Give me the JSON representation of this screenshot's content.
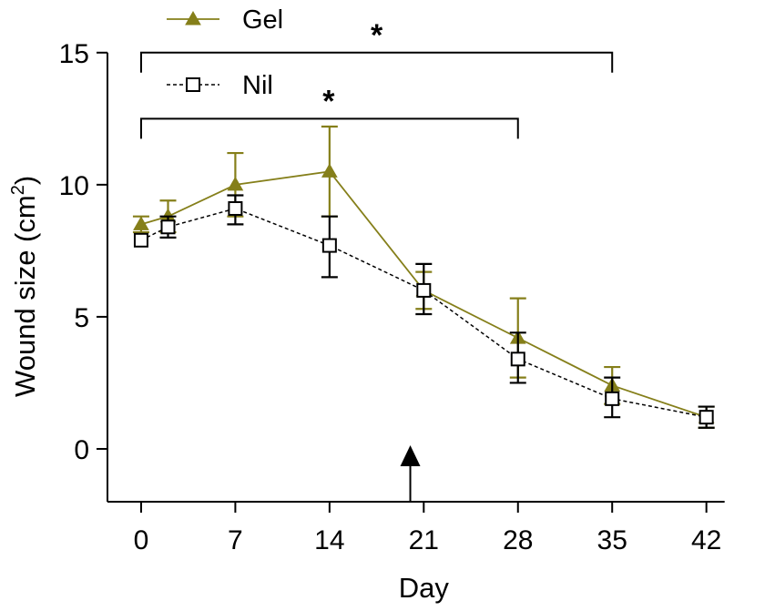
{
  "chart_data": {
    "type": "line",
    "title": "",
    "xlabel": "Day",
    "ylabel": "Wound size (cm",
    "ylabel_sup": "2",
    "ylabel_end": ")",
    "xlim": [
      -2.5,
      45
    ],
    "ylim": [
      -2,
      15.2
    ],
    "xticks": [
      0,
      7,
      14,
      21,
      28,
      35,
      42
    ],
    "yticks": [
      0,
      5,
      10,
      15
    ],
    "colors": {
      "gel": "#857f1a",
      "nil": "#000000",
      "axis": "#000000"
    },
    "series": [
      {
        "name": "Gel",
        "marker": "filled-triangle",
        "line": "solid",
        "x": [
          0,
          2,
          7,
          14,
          21,
          28,
          35,
          42
        ],
        "values": [
          8.5,
          8.8,
          10.0,
          10.5,
          6.0,
          4.2,
          2.4,
          1.2
        ],
        "err_upper": [
          8.8,
          9.4,
          11.2,
          12.2,
          6.7,
          5.7,
          3.1,
          1.6
        ],
        "err_lower": [
          8.2,
          8.2,
          8.8,
          8.8,
          5.3,
          2.7,
          1.7,
          0.8
        ]
      },
      {
        "name": "Nil",
        "marker": "open-square",
        "line": "dashed",
        "x": [
          0,
          2,
          7,
          14,
          21,
          28,
          35,
          42
        ],
        "values": [
          7.9,
          8.4,
          9.1,
          7.7,
          6.0,
          3.4,
          1.9,
          1.2
        ],
        "err_upper": [
          7.9,
          8.8,
          9.6,
          8.8,
          7.0,
          4.4,
          2.7,
          1.6
        ],
        "err_lower": [
          7.9,
          8.0,
          8.5,
          6.5,
          5.1,
          2.5,
          1.2,
          0.8
        ]
      }
    ],
    "significance_brackets": [
      {
        "from": 0,
        "to": 35,
        "y": 15.0,
        "label": "*"
      },
      {
        "from": 0,
        "to": 28,
        "y": 12.5,
        "label": "*"
      }
    ],
    "arrow_marker": {
      "x": 20,
      "direction": "up"
    },
    "legend": {
      "placement": "top-left",
      "entries": [
        "Gel",
        "Nil"
      ]
    }
  }
}
